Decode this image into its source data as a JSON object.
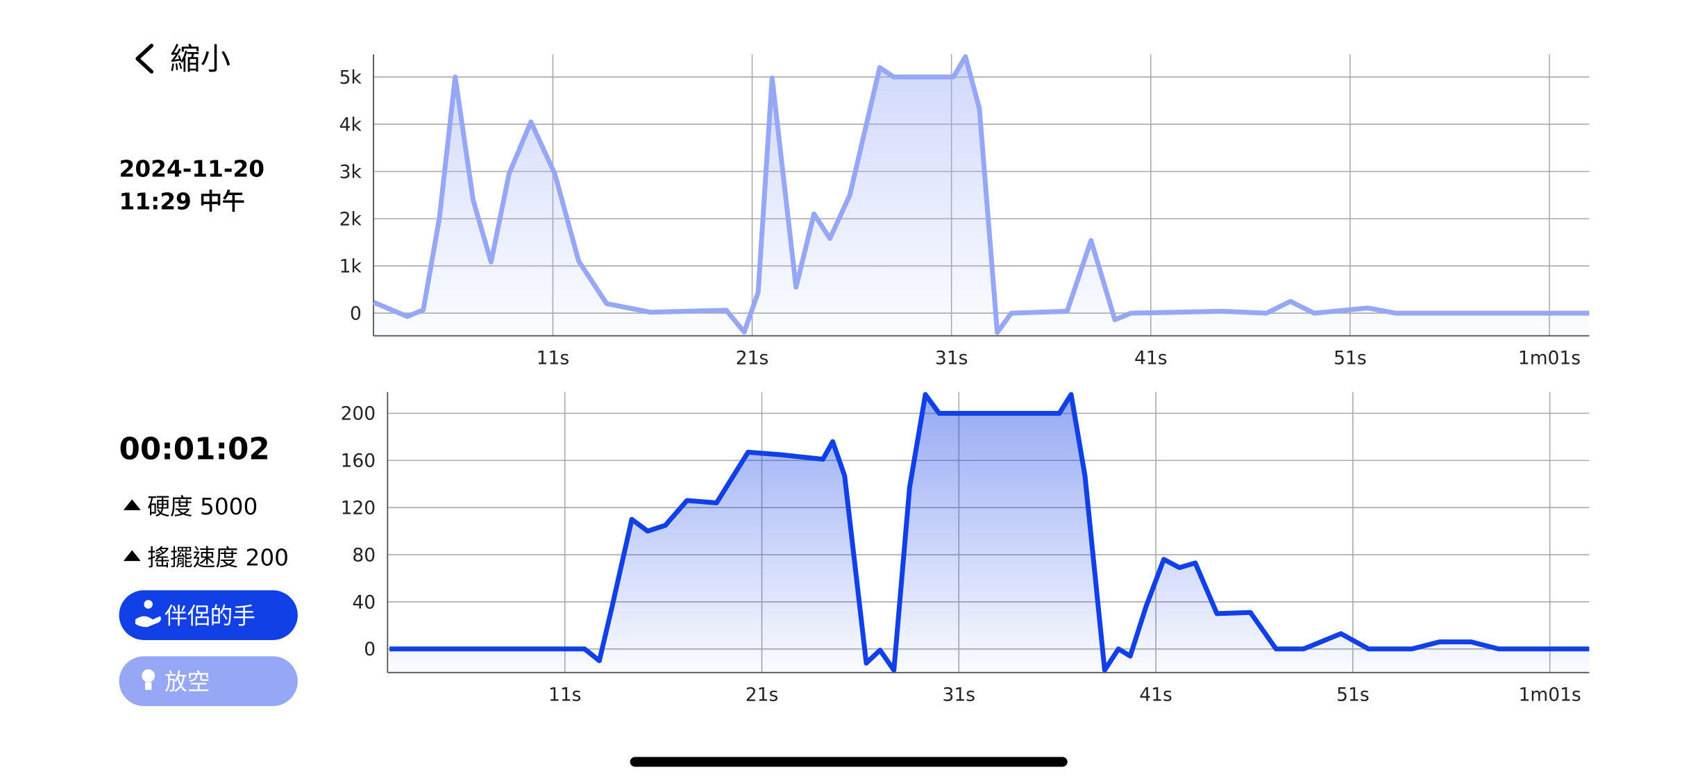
{
  "screen": {
    "back_label": "縮小",
    "date": "2024-11-20",
    "time": "11:29 中午",
    "duration": "00:01:02",
    "stats": [
      "硬度 5000",
      "搖擺速度 200"
    ],
    "buttons": [
      "伴侶的手",
      "放空"
    ]
  },
  "chart_data": [
    {
      "type": "area",
      "color": "#96a8f5",
      "grid": true,
      "x": [
        2.0,
        3.7,
        4.5,
        5.3,
        6.1,
        7.0,
        7.9,
        8.8,
        9.9,
        11.1,
        12.3,
        13.7,
        15.9,
        19.7,
        20.6,
        21.3,
        22.0,
        23.2,
        24.1,
        24.9,
        25.9,
        27.4,
        28.1,
        31.1,
        31.7,
        32.4,
        33.3,
        34.0,
        36.8,
        38.0,
        39.2,
        40.0,
        44.6,
        46.8,
        48.0,
        49.2,
        51.9,
        53.3,
        63.0
      ],
      "values": [
        230,
        -70,
        70,
        2000,
        5000,
        2400,
        1080,
        2950,
        4050,
        2950,
        1100,
        200,
        20,
        60,
        -400,
        440,
        4980,
        550,
        2100,
        1580,
        2500,
        5200,
        5000,
        5000,
        5430,
        4330,
        -410,
        0,
        40,
        1540,
        -140,
        0,
        40,
        0,
        250,
        0,
        110,
        0,
        0
      ],
      "xlim": [
        2,
        63
      ],
      "ylim": [
        -480,
        5480
      ],
      "xticks": [
        {
          "value": 11,
          "label": "11s"
        },
        {
          "value": 21,
          "label": "21s"
        },
        {
          "value": 31,
          "label": "31s"
        },
        {
          "value": 41,
          "label": "41s"
        },
        {
          "value": 51,
          "label": "51s"
        },
        {
          "value": 61,
          "label": "1m01s"
        }
      ],
      "yticks": [
        0,
        {
          "value": 1000,
          "label": "1k"
        },
        {
          "value": 2000,
          "label": "2k"
        },
        {
          "value": 3000,
          "label": "3k"
        },
        {
          "value": 4000,
          "label": "4k"
        },
        {
          "value": 5000,
          "label": "5k"
        }
      ]
    },
    {
      "type": "area",
      "color": "#1140e6",
      "grid": true,
      "x": [
        2.1,
        12.0,
        12.75,
        13.4,
        14.4,
        15.2,
        16.1,
        17.2,
        18.7,
        20.3,
        21.9,
        24.1,
        24.6,
        25.2,
        26.3,
        27.0,
        27.7,
        28.5,
        29.3,
        30.0,
        36.1,
        36.7,
        37.4,
        38.4,
        39.1,
        39.7,
        40.5,
        41.4,
        42.2,
        43.0,
        44.1,
        45.8,
        47.1,
        48.5,
        50.4,
        51.8,
        54.0,
        55.4,
        57.0,
        58.4,
        63.0
      ],
      "values": [
        0,
        0,
        -10,
        36,
        110,
        100,
        105,
        126,
        124,
        167,
        165,
        161,
        176,
        147,
        -12,
        -1,
        -18,
        137,
        216,
        200,
        200,
        216,
        147,
        -18,
        0,
        -6,
        36,
        76,
        69,
        73,
        30,
        31,
        0,
        0,
        13,
        0,
        0,
        6,
        6,
        0,
        0
      ],
      "xlim": [
        2,
        63
      ],
      "ylim": [
        -20,
        218
      ],
      "xticks": [
        {
          "value": 11,
          "label": "11s"
        },
        {
          "value": 21,
          "label": "21s"
        },
        {
          "value": 31,
          "label": "31s"
        },
        {
          "value": 41,
          "label": "41s"
        },
        {
          "value": 51,
          "label": "51s"
        },
        {
          "value": 61,
          "label": "1m01s"
        }
      ],
      "yticks": [
        0,
        40,
        80,
        120,
        160,
        200
      ]
    }
  ]
}
